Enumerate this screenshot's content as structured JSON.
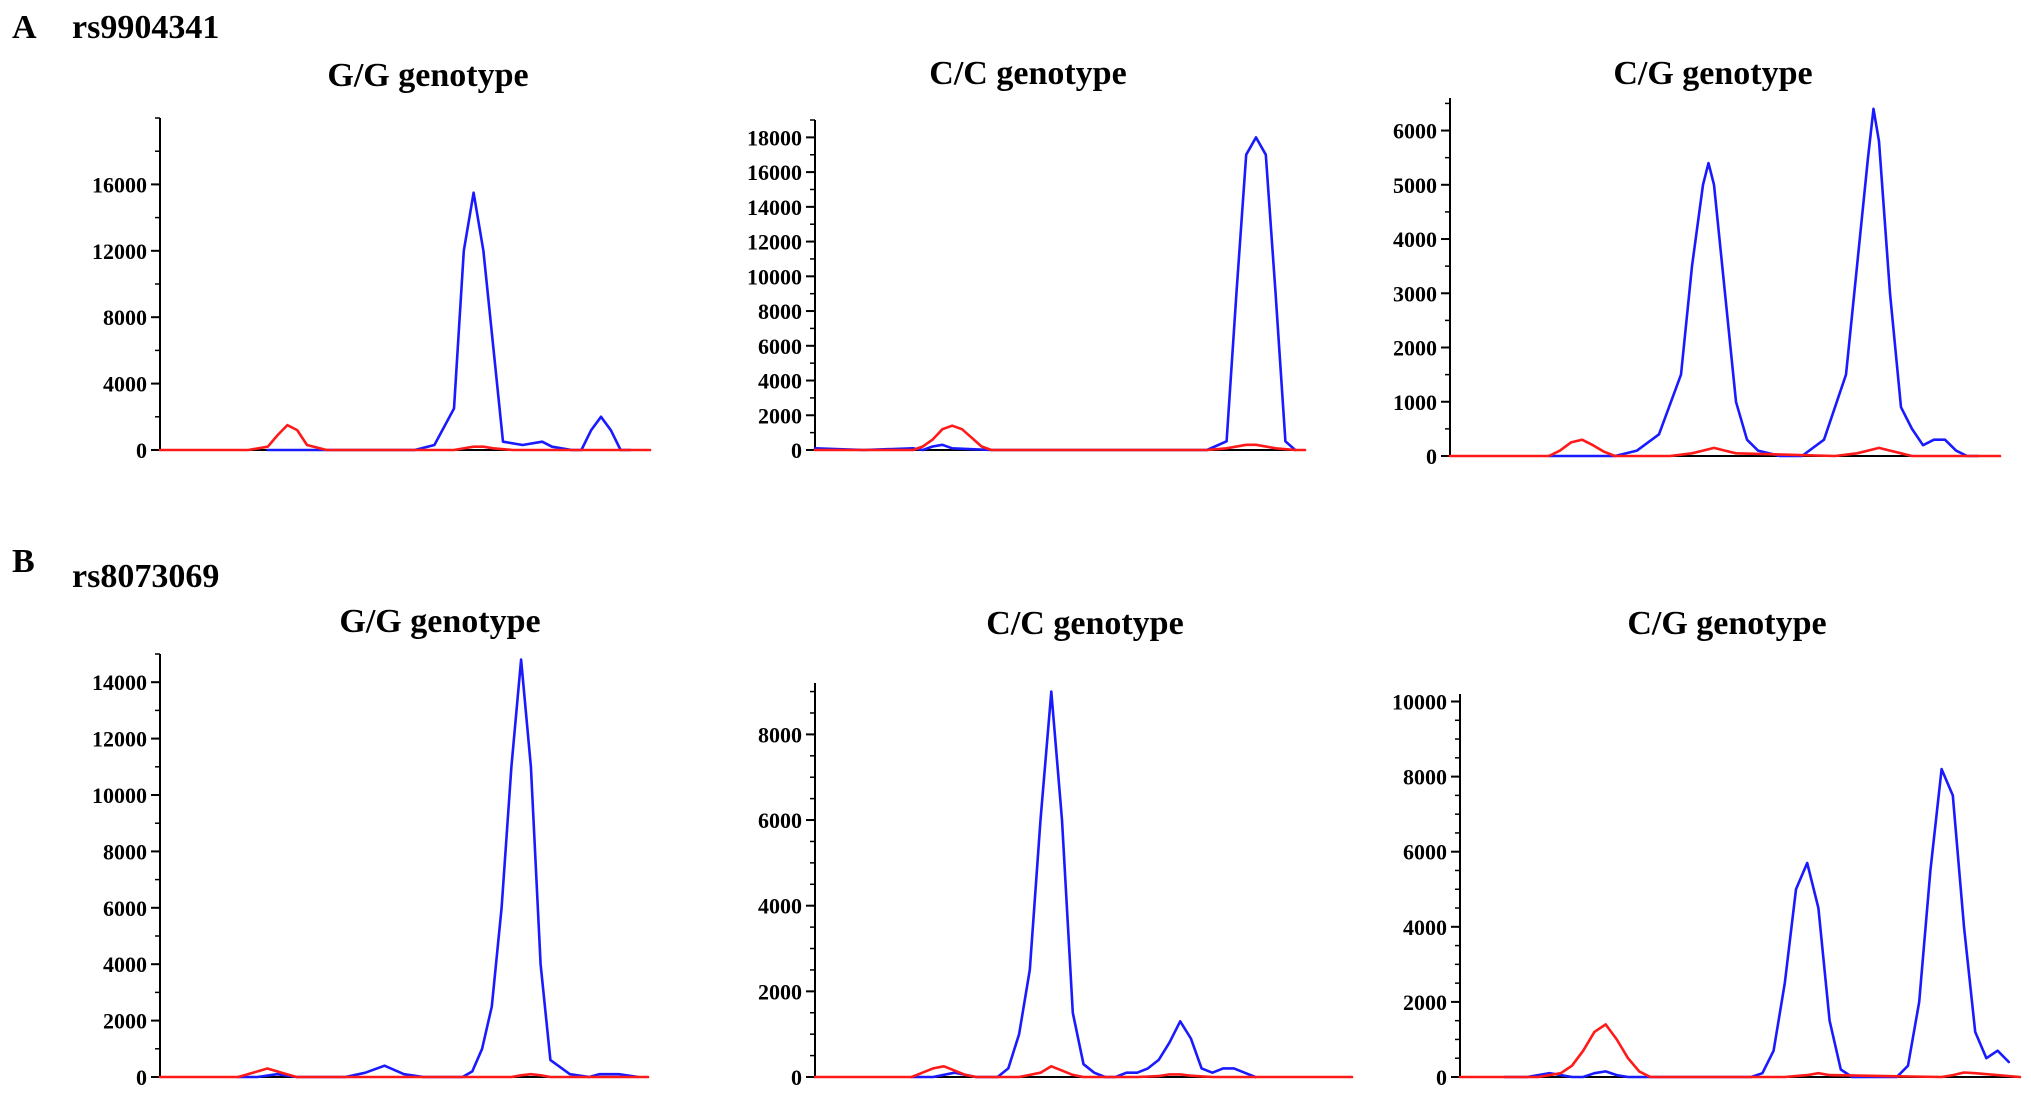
{
  "figure": {
    "panels": [
      {
        "letter": "A",
        "snp": "rs9904341"
      },
      {
        "letter": "B",
        "snp": "rs8073069"
      }
    ]
  },
  "colors": {
    "blue_series": "#1a1aff",
    "red_series": "#ff1a1a",
    "axis": "#000000"
  },
  "chart_data": [
    {
      "type": "line",
      "panel": "A",
      "title": "G/G genotype",
      "xlabel": "",
      "ylabel": "",
      "xlim": [
        0,
        100
      ],
      "ylim": [
        0,
        20000
      ],
      "yticks": [
        0,
        4000,
        8000,
        12000,
        16000
      ],
      "minor_step": 2000,
      "grid": false,
      "series": [
        {
          "color": "#1a1aff",
          "x": [
            22,
            30,
            36,
            42,
            48,
            52,
            56,
            60,
            62,
            64,
            66,
            70,
            74,
            78,
            80,
            84,
            86,
            88,
            90,
            92,
            94,
            96
          ],
          "y": [
            0,
            0,
            0,
            0,
            0,
            0,
            300,
            2500,
            12000,
            15500,
            12000,
            500,
            300,
            500,
            200,
            0,
            0,
            1200,
            2000,
            1200,
            0,
            0
          ]
        },
        {
          "color": "#ff1a1a",
          "x": [
            0,
            18,
            22,
            24,
            26,
            28,
            30,
            34,
            60,
            64,
            66,
            68,
            72,
            100
          ],
          "y": [
            0,
            0,
            200,
            900,
            1500,
            1200,
            300,
            0,
            0,
            200,
            200,
            100,
            0,
            0
          ]
        }
      ]
    },
    {
      "type": "line",
      "panel": "A",
      "title": "C/C genotype",
      "xlabel": "",
      "ylabel": "",
      "xlim": [
        0,
        100
      ],
      "ylim": [
        0,
        19000
      ],
      "yticks": [
        0,
        2000,
        4000,
        6000,
        8000,
        10000,
        12000,
        14000,
        16000,
        18000
      ],
      "minor_step": 1000,
      "grid": false,
      "series": [
        {
          "color": "#1a1aff",
          "x": [
            0,
            10,
            20,
            22,
            24,
            26,
            28,
            36,
            80,
            84,
            86,
            88,
            90,
            92,
            94,
            96,
            98
          ],
          "y": [
            100,
            0,
            100,
            0,
            200,
            300,
            100,
            0,
            0,
            500,
            9000,
            17000,
            18000,
            17000,
            9000,
            500,
            0
          ]
        },
        {
          "color": "#ff1a1a",
          "x": [
            0,
            20,
            22,
            24,
            26,
            28,
            30,
            32,
            34,
            36,
            38,
            80,
            84,
            88,
            90,
            94,
            98,
            100
          ],
          "y": [
            0,
            0,
            200,
            600,
            1200,
            1400,
            1200,
            700,
            200,
            0,
            0,
            0,
            100,
            300,
            300,
            100,
            0,
            0
          ]
        }
      ]
    },
    {
      "type": "line",
      "panel": "A",
      "title": "C/G genotype",
      "xlabel": "",
      "ylabel": "",
      "xlim": [
        0,
        100
      ],
      "ylim": [
        0,
        6600
      ],
      "yticks": [
        0,
        1000,
        2000,
        3000,
        4000,
        5000,
        6000
      ],
      "minor_step": 500,
      "grid": false,
      "series": [
        {
          "color": "#1a1aff",
          "x": [
            18,
            22,
            26,
            30,
            34,
            38,
            42,
            44,
            46,
            47,
            48,
            50,
            52,
            54,
            56,
            60,
            64,
            68,
            72,
            74,
            76,
            77,
            78,
            80,
            82,
            84,
            86,
            88,
            90,
            92,
            94,
            96
          ],
          "y": [
            0,
            0,
            0,
            0,
            100,
            400,
            1500,
            3500,
            5000,
            5400,
            5000,
            3000,
            1000,
            300,
            100,
            0,
            0,
            300,
            1500,
            3500,
            5500,
            6400,
            5800,
            3000,
            900,
            500,
            200,
            300,
            300,
            100,
            0,
            0
          ]
        },
        {
          "color": "#ff1a1a",
          "x": [
            0,
            18,
            20,
            22,
            24,
            26,
            28,
            30,
            40,
            44,
            46,
            48,
            50,
            52,
            70,
            74,
            76,
            78,
            80,
            82,
            84,
            100
          ],
          "y": [
            0,
            0,
            100,
            250,
            300,
            200,
            80,
            0,
            0,
            50,
            100,
            150,
            100,
            50,
            0,
            50,
            100,
            150,
            100,
            50,
            0,
            0
          ]
        }
      ]
    },
    {
      "type": "line",
      "panel": "B",
      "title": "G/G genotype",
      "xlabel": "",
      "ylabel": "",
      "xlim": [
        0,
        100
      ],
      "ylim": [
        0,
        15000
      ],
      "yticks": [
        0,
        2000,
        4000,
        6000,
        8000,
        10000,
        12000,
        14000
      ],
      "minor_step": 1000,
      "grid": false,
      "series": [
        {
          "color": "#1a1aff",
          "x": [
            16,
            20,
            24,
            28,
            34,
            38,
            42,
            46,
            50,
            54,
            62,
            64,
            66,
            68,
            70,
            72,
            74,
            76,
            78,
            80,
            84,
            88,
            90,
            94,
            98
          ],
          "y": [
            0,
            0,
            100,
            0,
            0,
            0,
            150,
            400,
            100,
            0,
            0,
            200,
            1000,
            2500,
            6000,
            11000,
            14800,
            11000,
            4000,
            600,
            100,
            0,
            100,
            100,
            0
          ]
        },
        {
          "color": "#ff1a1a",
          "x": [
            0,
            16,
            18,
            20,
            22,
            24,
            26,
            28,
            30,
            34,
            40,
            70,
            72,
            74,
            76,
            78,
            80,
            100
          ],
          "y": [
            0,
            0,
            100,
            200,
            300,
            200,
            100,
            0,
            0,
            0,
            0,
            0,
            0,
            60,
            100,
            60,
            0,
            0
          ]
        }
      ]
    },
    {
      "type": "line",
      "panel": "B",
      "title": "C/C genotype",
      "xlabel": "",
      "ylabel": "",
      "xlim": [
        0,
        100
      ],
      "ylim": [
        0,
        9200
      ],
      "yticks": [
        0,
        2000,
        4000,
        6000,
        8000
      ],
      "minor_step": 500,
      "grid": false,
      "series": [
        {
          "color": "#1a1aff",
          "x": [
            18,
            22,
            26,
            30,
            34,
            36,
            38,
            40,
            42,
            44,
            46,
            48,
            50,
            52,
            54,
            56,
            58,
            60,
            62,
            64,
            66,
            68,
            70,
            72,
            74,
            76,
            78,
            80,
            82
          ],
          "y": [
            0,
            0,
            100,
            0,
            0,
            200,
            1000,
            2500,
            6000,
            9000,
            6000,
            1500,
            300,
            100,
            0,
            0,
            100,
            100,
            200,
            400,
            800,
            1300,
            900,
            200,
            100,
            200,
            200,
            100,
            0
          ]
        },
        {
          "color": "#ff1a1a",
          "x": [
            0,
            18,
            20,
            22,
            24,
            26,
            28,
            30,
            38,
            40,
            42,
            44,
            46,
            48,
            50,
            60,
            64,
            66,
            68,
            70,
            74,
            100
          ],
          "y": [
            0,
            0,
            100,
            200,
            250,
            150,
            50,
            0,
            0,
            50,
            100,
            250,
            150,
            50,
            0,
            0,
            20,
            60,
            60,
            30,
            0,
            0
          ]
        }
      ]
    },
    {
      "type": "line",
      "panel": "B",
      "title": "C/G genotype",
      "xlabel": "",
      "ylabel": "",
      "xlim": [
        0,
        100
      ],
      "ylim": [
        0,
        10200
      ],
      "yticks": [
        0,
        2000,
        4000,
        6000,
        8000,
        10000
      ],
      "minor_step": 500,
      "grid": false,
      "series": [
        {
          "color": "#1a1aff",
          "x": [
            8,
            12,
            16,
            20,
            22,
            24,
            26,
            28,
            30,
            32,
            36,
            40,
            52,
            54,
            56,
            58,
            60,
            62,
            64,
            66,
            68,
            70,
            72,
            74,
            76,
            78,
            80,
            82,
            84,
            86,
            88,
            90,
            92,
            94,
            96,
            98
          ],
          "y": [
            0,
            0,
            100,
            0,
            0,
            100,
            150,
            50,
            0,
            0,
            0,
            0,
            0,
            100,
            700,
            2500,
            5000,
            5700,
            4500,
            1500,
            200,
            0,
            0,
            0,
            0,
            0,
            300,
            2000,
            5500,
            8200,
            7500,
            4000,
            1200,
            500,
            700,
            400
          ]
        },
        {
          "color": "#ff1a1a",
          "x": [
            0,
            14,
            18,
            20,
            22,
            24,
            26,
            28,
            30,
            32,
            34,
            40,
            58,
            62,
            64,
            66,
            86,
            88,
            90,
            92,
            100
          ],
          "y": [
            0,
            0,
            100,
            300,
            700,
            1200,
            1400,
            1000,
            500,
            150,
            0,
            0,
            0,
            50,
            100,
            50,
            0,
            50,
            120,
            100,
            0
          ]
        }
      ]
    }
  ]
}
